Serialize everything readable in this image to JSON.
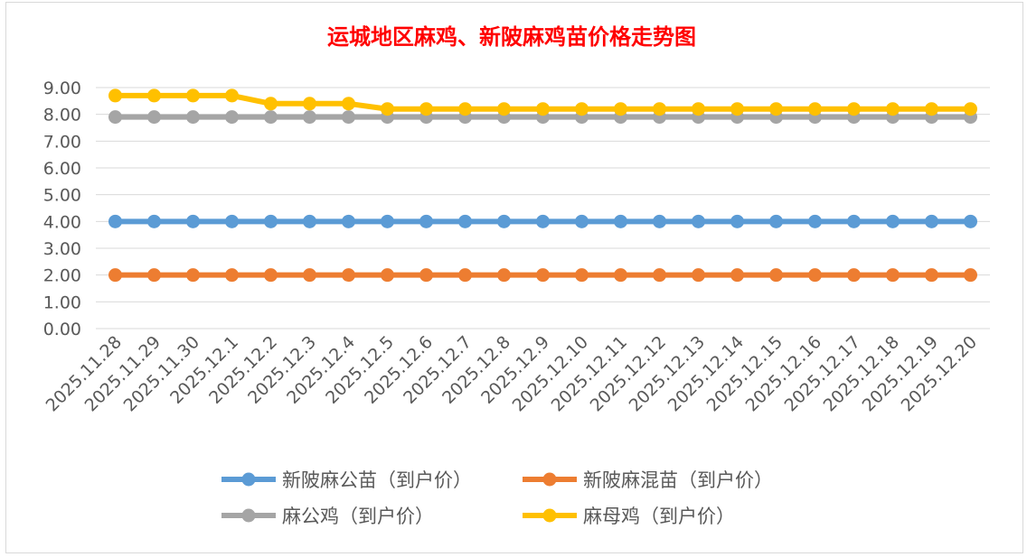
{
  "chart_data": {
    "type": "line",
    "title": "运城地区麻鸡、新陂麻鸡苗价格走势图",
    "xlabel": "",
    "ylabel": "",
    "ylim": [
      0,
      9
    ],
    "yticks": [
      "0.00",
      "1.00",
      "2.00",
      "3.00",
      "4.00",
      "5.00",
      "6.00",
      "7.00",
      "8.00",
      "9.00"
    ],
    "grid": true,
    "legend_position": "bottom",
    "categories": [
      "2025.11.28",
      "2025.11.29",
      "2025.11.30",
      "2025.12.1",
      "2025.12.2",
      "2025.12.3",
      "2025.12.4",
      "2025.12.5",
      "2025.12.6",
      "2025.12.7",
      "2025.12.8",
      "2025.12.9",
      "2025.12.10",
      "2025.12.11",
      "2025.12.12",
      "2025.12.13",
      "2025.12.14",
      "2025.12.15",
      "2025.12.16",
      "2025.12.17",
      "2025.12.18",
      "2025.12.19",
      "2025.12.20"
    ],
    "series": [
      {
        "name": "新陂麻公苗（到户价）",
        "color": "#5b9bd5",
        "values": [
          4,
          4,
          4,
          4,
          4,
          4,
          4,
          4,
          4,
          4,
          4,
          4,
          4,
          4,
          4,
          4,
          4,
          4,
          4,
          4,
          4,
          4,
          4
        ]
      },
      {
        "name": "新陂麻混苗（到户价）",
        "color": "#ed7d31",
        "values": [
          2,
          2,
          2,
          2,
          2,
          2,
          2,
          2,
          2,
          2,
          2,
          2,
          2,
          2,
          2,
          2,
          2,
          2,
          2,
          2,
          2,
          2,
          2
        ]
      },
      {
        "name": "麻公鸡（到户价）",
        "color": "#a5a5a5",
        "values": [
          7.9,
          7.9,
          7.9,
          7.9,
          7.9,
          7.9,
          7.9,
          7.9,
          7.9,
          7.9,
          7.9,
          7.9,
          7.9,
          7.9,
          7.9,
          7.9,
          7.9,
          7.9,
          7.9,
          7.9,
          7.9,
          7.9,
          7.9
        ]
      },
      {
        "name": "麻母鸡（到户价）",
        "color": "#ffc000",
        "values": [
          8.7,
          8.7,
          8.7,
          8.7,
          8.4,
          8.4,
          8.4,
          8.2,
          8.2,
          8.2,
          8.2,
          8.2,
          8.2,
          8.2,
          8.2,
          8.2,
          8.2,
          8.2,
          8.2,
          8.2,
          8.2,
          8.2,
          8.2
        ]
      }
    ]
  }
}
